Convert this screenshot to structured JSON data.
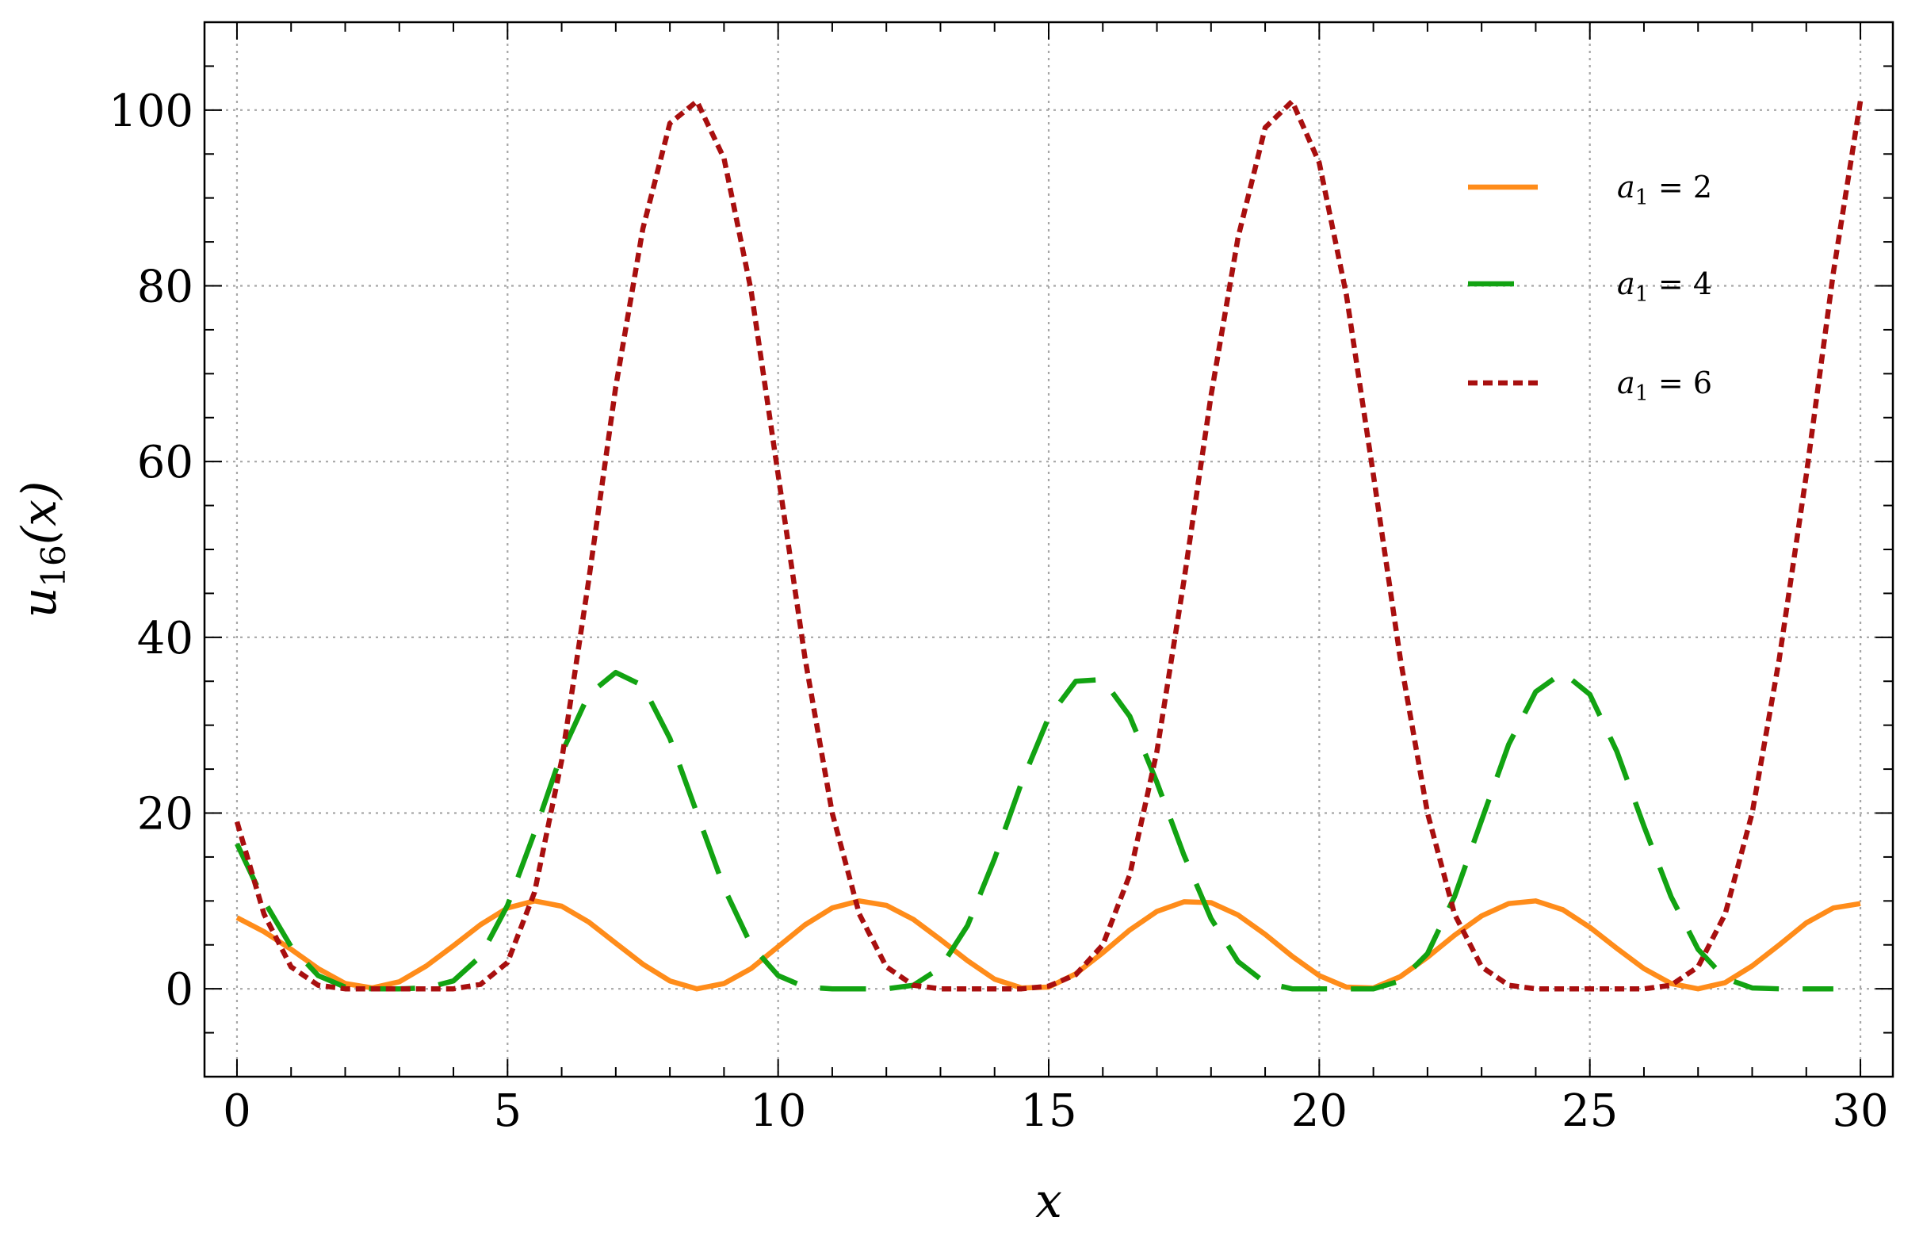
{
  "chart_data": {
    "type": "line",
    "title": "",
    "xlabel": "x",
    "ylabel_main": "u",
    "ylabel_sub": "16",
    "ylabel_arg": "(x)",
    "xlim": [
      -0.6,
      30.6
    ],
    "ylim": [
      -10,
      110
    ],
    "xticks": [
      0,
      5,
      10,
      15,
      20,
      25,
      30
    ],
    "yticks": [
      0,
      20,
      40,
      60,
      80,
      100
    ],
    "x_minor_step": 1,
    "y_minor_step": 5,
    "grid": true,
    "legend_position": "top-right",
    "series": [
      {
        "name": "a1 = 2",
        "legend_main": "a",
        "legend_sub": "1",
        "legend_rest": " = 2",
        "color": "#ff8c1a",
        "style": "solid",
        "x": [
          0,
          0.5,
          1,
          1.5,
          2,
          2.5,
          3,
          3.5,
          4,
          4.5,
          5,
          5.5,
          6,
          6.5,
          7,
          7.5,
          8,
          8.5,
          9,
          9.5,
          10,
          10.5,
          11,
          11.5,
          12,
          12.5,
          13,
          13.5,
          14,
          14.5,
          15,
          15.5,
          16,
          16.5,
          17,
          17.5,
          18,
          18.5,
          19,
          19.5,
          20,
          20.5,
          21,
          21.5,
          22,
          22.5,
          23,
          23.5,
          24,
          24.5,
          25,
          25.5,
          26,
          26.5,
          27,
          27.5,
          28,
          28.5,
          29,
          29.5,
          30
        ],
        "y": [
          8.1,
          6.5,
          4.5,
          2.3,
          0.6,
          0.1,
          0.8,
          2.6,
          4.9,
          7.3,
          9.2,
          10.0,
          9.4,
          7.6,
          5.2,
          2.8,
          0.9,
          0.0,
          0.6,
          2.3,
          4.8,
          7.3,
          9.2,
          10.0,
          9.5,
          7.9,
          5.6,
          3.2,
          1.1,
          0.1,
          0.2,
          1.7,
          4.1,
          6.7,
          8.8,
          9.9,
          9.8,
          8.4,
          6.2,
          3.7,
          1.5,
          0.2,
          0.1,
          1.4,
          3.6,
          6.1,
          8.3,
          9.7,
          10.0,
          9.0,
          7.0,
          4.6,
          2.3,
          0.6,
          0.0,
          0.7,
          2.6,
          5.0,
          7.5,
          9.2,
          9.7
        ]
      },
      {
        "name": "a1 = 4",
        "legend_main": "a",
        "legend_sub": "1",
        "legend_rest": " = 4",
        "color": "#12a312",
        "style": "dashed",
        "x": [
          0,
          0.5,
          1,
          1.5,
          2,
          2.5,
          3,
          3.5,
          4,
          4.5,
          5,
          5.5,
          6,
          6.5,
          7,
          7.5,
          8,
          8.5,
          9,
          9.5,
          10,
          10.5,
          11,
          11.5,
          12,
          12.5,
          13,
          13.5,
          14,
          14.5,
          15,
          15.5,
          16,
          16.5,
          17,
          17.5,
          18,
          18.5,
          19,
          19.5,
          20,
          20.5,
          21,
          21.5,
          22,
          22.5,
          23,
          23.5,
          24,
          24.5,
          25,
          25.5,
          26,
          26.5,
          27,
          27.5,
          28,
          28.5,
          29,
          29.5
        ],
        "y": [
          16.5,
          10.0,
          4.8,
          1.5,
          0.2,
          0.0,
          0.0,
          0.1,
          0.9,
          3.7,
          9.5,
          17.8,
          26.8,
          33.5,
          36.0,
          34.5,
          28.5,
          20.0,
          11.5,
          5.0,
          1.5,
          0.2,
          0.0,
          0.0,
          0.0,
          0.4,
          2.4,
          7.2,
          14.8,
          23.5,
          30.9,
          35.0,
          35.2,
          31.0,
          23.5,
          15.2,
          8.0,
          3.1,
          0.7,
          0.0,
          0.0,
          0.0,
          0.0,
          0.9,
          4.0,
          10.5,
          19.2,
          27.8,
          33.8,
          36.0,
          33.5,
          27.0,
          18.5,
          10.5,
          4.5,
          1.2,
          0.1,
          0.0,
          0.0,
          0.0
        ]
      },
      {
        "name": "a1 = 6",
        "legend_main": "a",
        "legend_sub": "1",
        "legend_rest": " = 6",
        "color": "#a80f0f",
        "style": "dotted",
        "x": [
          0,
          0.5,
          1,
          1.5,
          2,
          2.5,
          3,
          3.5,
          4,
          4.5,
          5,
          5.5,
          6,
          6.5,
          7,
          7.5,
          8,
          8.5,
          9,
          9.5,
          10,
          10.5,
          11,
          11.5,
          12,
          12.5,
          13,
          13.5,
          14,
          14.5,
          15,
          15.5,
          16,
          16.5,
          17,
          17.5,
          18,
          18.5,
          19,
          19.5,
          20,
          20.5,
          21,
          21.5,
          22,
          22.5,
          23,
          23.5,
          24,
          24.5,
          25,
          25.5,
          26,
          26.5,
          27,
          27.5,
          28,
          28.5,
          29,
          29.5,
          30
        ],
        "y": [
          19.0,
          8.5,
          2.5,
          0.4,
          0.0,
          0.0,
          0.0,
          0.0,
          0.0,
          0.5,
          3.0,
          11.0,
          26.0,
          46.5,
          68.5,
          86.5,
          98.5,
          101.0,
          94.5,
          79.5,
          58.5,
          37.5,
          20.0,
          8.5,
          2.5,
          0.4,
          0.0,
          0.0,
          0.0,
          0.0,
          0.3,
          1.6,
          5.0,
          13.0,
          27.0,
          46.5,
          67.5,
          85.5,
          98.0,
          101.0,
          94.0,
          79.0,
          58.5,
          37.5,
          20.0,
          8.5,
          2.5,
          0.4,
          0.0,
          0.0,
          0.0,
          0.0,
          0.0,
          0.4,
          2.5,
          8.5,
          20.0,
          37.5,
          58.5,
          81.5,
          101.0
        ]
      }
    ]
  }
}
